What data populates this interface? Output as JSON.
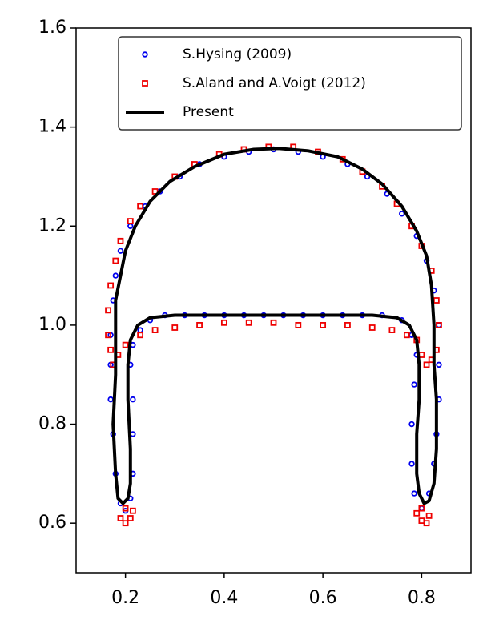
{
  "chart_data": {
    "type": "scatter",
    "xlim": [
      0.1,
      0.9
    ],
    "ylim": [
      0.5,
      1.6
    ],
    "xticks": [
      0.2,
      0.4,
      0.6,
      0.8
    ],
    "yticks": [
      0.6,
      0.8,
      {
        "value": 1,
        "label": "1.0"
      },
      1.2,
      1.4,
      1.6
    ],
    "legend": "upper right",
    "series": [
      {
        "name": "S.Hysing (2009)",
        "color": "#0000ee",
        "marker": "circle",
        "x": [
          0.17,
          0.175,
          0.18,
          0.19,
          0.21,
          0.24,
          0.27,
          0.31,
          0.35,
          0.4,
          0.45,
          0.5,
          0.55,
          0.6,
          0.65,
          0.69,
          0.73,
          0.76,
          0.79,
          0.81,
          0.825,
          0.835,
          0.835,
          0.835,
          0.83,
          0.825,
          0.815,
          0.8,
          0.785,
          0.78,
          0.78,
          0.785,
          0.79,
          0.78,
          0.76,
          0.72,
          0.68,
          0.64,
          0.6,
          0.56,
          0.52,
          0.48,
          0.44,
          0.4,
          0.36,
          0.32,
          0.28,
          0.25,
          0.23,
          0.215,
          0.21,
          0.215,
          0.215,
          0.215,
          0.21,
          0.2,
          0.19,
          0.18,
          0.175,
          0.17,
          0.17
        ],
        "y": [
          0.98,
          1.05,
          1.1,
          1.15,
          1.2,
          1.24,
          1.27,
          1.3,
          1.325,
          1.34,
          1.35,
          1.355,
          1.35,
          1.34,
          1.325,
          1.3,
          1.265,
          1.225,
          1.18,
          1.13,
          1.07,
          1.0,
          0.92,
          0.85,
          0.78,
          0.72,
          0.66,
          0.63,
          0.66,
          0.72,
          0.8,
          0.88,
          0.94,
          0.98,
          1.01,
          1.02,
          1.02,
          1.02,
          1.02,
          1.02,
          1.02,
          1.02,
          1.02,
          1.02,
          1.02,
          1.02,
          1.02,
          1.01,
          0.99,
          0.96,
          0.92,
          0.85,
          0.78,
          0.7,
          0.65,
          0.625,
          0.64,
          0.7,
          0.78,
          0.85,
          0.92
        ]
      },
      {
        "name": "S.Aland and A.Voigt (2012)",
        "color": "#ee0000",
        "marker": "square",
        "x": [
          0.165,
          0.17,
          0.18,
          0.19,
          0.21,
          0.23,
          0.26,
          0.3,
          0.34,
          0.39,
          0.44,
          0.49,
          0.54,
          0.59,
          0.64,
          0.68,
          0.72,
          0.75,
          0.78,
          0.8,
          0.82,
          0.83,
          0.835,
          0.83,
          0.82,
          0.81,
          0.8,
          0.79,
          0.77,
          0.74,
          0.7,
          0.65,
          0.6,
          0.55,
          0.5,
          0.45,
          0.4,
          0.35,
          0.3,
          0.26,
          0.23,
          0.2,
          0.185,
          0.175,
          0.17,
          0.165,
          0.19,
          0.2,
          0.21,
          0.215,
          0.2,
          0.79,
          0.8,
          0.81,
          0.815,
          0.8
        ],
        "y": [
          1.03,
          1.08,
          1.13,
          1.17,
          1.21,
          1.24,
          1.27,
          1.3,
          1.325,
          1.345,
          1.355,
          1.36,
          1.36,
          1.35,
          1.335,
          1.31,
          1.28,
          1.245,
          1.2,
          1.16,
          1.11,
          1.05,
          1.0,
          0.95,
          0.93,
          0.92,
          0.94,
          0.97,
          0.98,
          0.99,
          0.995,
          1.0,
          1.0,
          1.0,
          1.005,
          1.005,
          1.005,
          1.0,
          0.995,
          0.99,
          0.98,
          0.96,
          0.94,
          0.92,
          0.95,
          0.98,
          0.61,
          0.6,
          0.61,
          0.625,
          0.63,
          0.62,
          0.605,
          0.6,
          0.615,
          0.63
        ]
      },
      {
        "name": "Present",
        "color": "#000000",
        "marker": "line",
        "x": [
          0.18,
          0.18,
          0.19,
          0.2,
          0.22,
          0.25,
          0.29,
          0.34,
          0.4,
          0.46,
          0.51,
          0.57,
          0.63,
          0.68,
          0.72,
          0.76,
          0.79,
          0.81,
          0.82,
          0.825,
          0.825,
          0.83,
          0.83,
          0.825,
          0.815,
          0.805,
          0.795,
          0.79,
          0.79,
          0.795,
          0.795,
          0.79,
          0.775,
          0.75,
          0.7,
          0.6,
          0.5,
          0.4,
          0.3,
          0.25,
          0.225,
          0.21,
          0.205,
          0.205,
          0.21,
          0.21,
          0.205,
          0.195,
          0.185,
          0.18,
          0.175,
          0.18,
          0.18
        ],
        "y": [
          0.95,
          1.05,
          1.1,
          1.15,
          1.2,
          1.25,
          1.29,
          1.32,
          1.345,
          1.355,
          1.357,
          1.352,
          1.34,
          1.315,
          1.285,
          1.24,
          1.19,
          1.14,
          1.08,
          1.0,
          0.92,
          0.85,
          0.75,
          0.68,
          0.645,
          0.64,
          0.66,
          0.7,
          0.78,
          0.85,
          0.92,
          0.97,
          1.0,
          1.015,
          1.02,
          1.02,
          1.02,
          1.02,
          1.02,
          1.015,
          1.0,
          0.97,
          0.92,
          0.85,
          0.75,
          0.68,
          0.65,
          0.64,
          0.65,
          0.7,
          0.8,
          0.9,
          0.95
        ]
      }
    ]
  }
}
